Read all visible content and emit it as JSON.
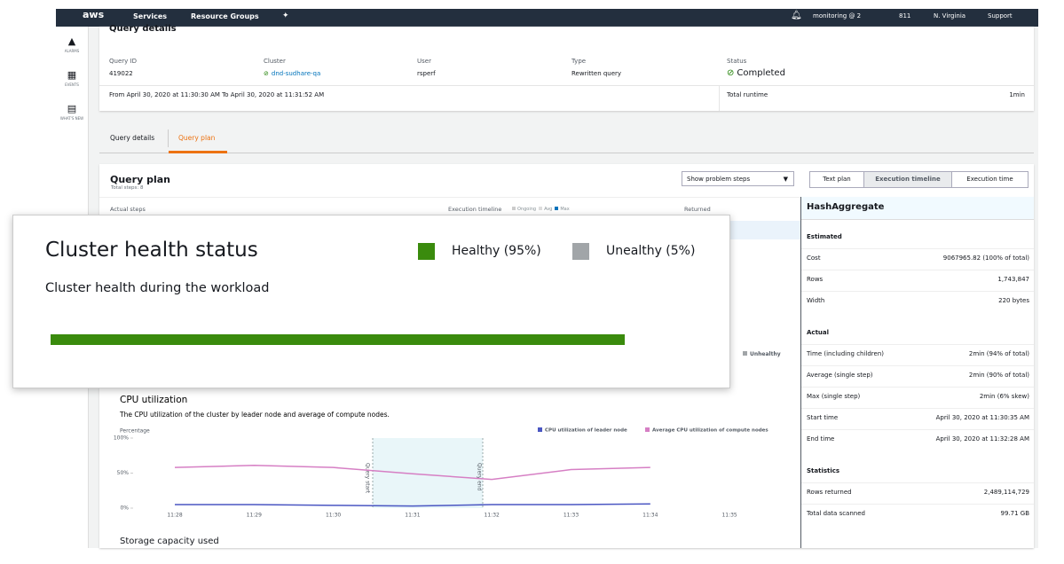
{
  "nav": {
    "logo": "aws",
    "services": "Services",
    "resource_groups": "Resource Groups",
    "account": "monitoring @ 2",
    "account_id": "811",
    "region": "N. Virginia",
    "support": "Support"
  },
  "sidebar": [
    "ALARMS",
    "EVENTS",
    "WHAT'S NEW"
  ],
  "query_details": {
    "title": "Query details",
    "fields": [
      {
        "label": "Query ID",
        "value": "419022"
      },
      {
        "label": "Cluster",
        "value": "dnd-sudhare-qa"
      },
      {
        "label": "User",
        "value": "rsperf"
      },
      {
        "label": "Type",
        "value": "Rewritten query"
      },
      {
        "label": "Status",
        "value": "Completed"
      }
    ],
    "time_range": "From April 30, 2020 at 11:30:30 AM To April 30, 2020 at 11:31:52 AM",
    "runtime_label": "Total runtime",
    "runtime_value": "1min"
  },
  "tabs": [
    "Query details",
    "Query plan"
  ],
  "query_plan": {
    "title": "Query plan",
    "subtitle": "Total steps: 8",
    "dropdown": "Show problem steps",
    "view_buttons": [
      "Text plan",
      "Execution timeline",
      "Execution time"
    ],
    "columns": [
      "Actual steps",
      "Execution timeline",
      "Returned"
    ],
    "timeline_legend": [
      "Ongoing",
      "Avg",
      "Max"
    ],
    "health_hint": "Unhealthy"
  },
  "detail_panel": {
    "title": "HashAggregate",
    "sections": [
      {
        "heading": "Estimated",
        "rows": [
          [
            "Cost",
            "9067965.82 (100% of total)"
          ],
          [
            "Rows",
            "1,743,847"
          ],
          [
            "Width",
            "220 bytes"
          ]
        ]
      },
      {
        "heading": "Actual",
        "rows": [
          [
            "Time (including children)",
            "2min (94% of total)"
          ],
          [
            "Average (single step)",
            "2min (90% of total)"
          ],
          [
            "Max (single step)",
            "2min (6% skew)"
          ],
          [
            "Start time",
            "April 30, 2020 at 11:30:35 AM"
          ],
          [
            "End time",
            "April 30, 2020 at 11:32:28 AM"
          ]
        ]
      },
      {
        "heading": "Statistics",
        "rows": [
          [
            "Rows returned",
            "2,489,114,729"
          ],
          [
            "Total data scanned",
            "99.71 GB"
          ]
        ]
      }
    ]
  },
  "cluster_health": {
    "title": "Cluster health status",
    "subtitle": "Cluster health during the workload",
    "legend": [
      {
        "label": "Healthy (95%)",
        "color": "#3a8b0d"
      },
      {
        "label": "Unealthy (5%)",
        "color": "#a1a5a8"
      }
    ]
  },
  "storage_title": "Storage capacity used",
  "chart_data": {
    "type": "line",
    "title": "CPU utilization",
    "subtitle": "The CPU utilization of the cluster by leader node and average of compute nodes.",
    "y_label": "Percentage",
    "annotations": [
      "Query start",
      "Query end"
    ],
    "categories": [
      "11:28",
      "11:29",
      "11:30",
      "11:31",
      "11:32",
      "11:33",
      "11:34",
      "11:35"
    ],
    "series": [
      {
        "name": "CPU utilization of leader node",
        "color": "#4a56c2",
        "values": [
          5,
          5,
          4,
          3,
          5,
          5,
          6,
          null
        ]
      },
      {
        "name": "Average CPU utilization of compute nodes",
        "color": "#d67fc4",
        "values": [
          58,
          61,
          58,
          49,
          41,
          55,
          58,
          null
        ]
      }
    ],
    "ylim": [
      0,
      100
    ],
    "yticks": [
      {
        "value": 0,
        "label": "0%"
      },
      {
        "value": 50,
        "label": "50%"
      },
      {
        "value": 100,
        "label": "100%"
      }
    ]
  }
}
